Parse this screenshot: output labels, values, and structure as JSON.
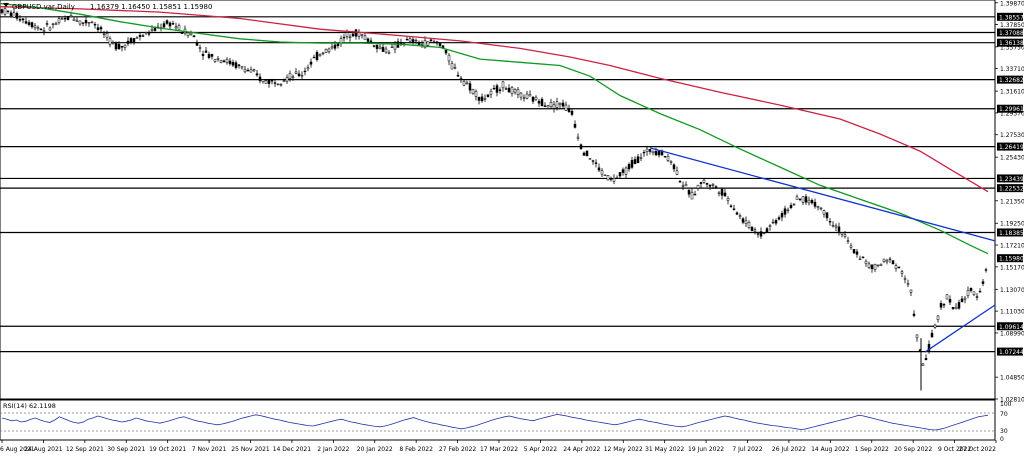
{
  "header": {
    "symbol": "GBPUSD.var,Daily",
    "ohlc": "1.16379 1.16450 1.15851 1.15980"
  },
  "rsi": {
    "label": "RSI(14) 62.1198",
    "levels": [
      "100",
      "70",
      "30",
      "0"
    ],
    "values": [
      55,
      52,
      48,
      50,
      45,
      47,
      52,
      55,
      50,
      46,
      44,
      50,
      58,
      53,
      48,
      44,
      42,
      45,
      52,
      55,
      60,
      57,
      53,
      50,
      48,
      45,
      47,
      50,
      55,
      52,
      48,
      46,
      44,
      42,
      45,
      48,
      52,
      56,
      58,
      54,
      50,
      47,
      45,
      42,
      40,
      38,
      40,
      43,
      46,
      50,
      54,
      57,
      60,
      63,
      61,
      58,
      55,
      52,
      50,
      47,
      44,
      42,
      40,
      38,
      36,
      35,
      38,
      41,
      44,
      47,
      50,
      52,
      48,
      45,
      43,
      40,
      38,
      36,
      34,
      33,
      35,
      38,
      42,
      46,
      50,
      53,
      56,
      52,
      48,
      45,
      42,
      40,
      37,
      35,
      32,
      30,
      28,
      30,
      33,
      36,
      40,
      44,
      48,
      52,
      55,
      58,
      60,
      57,
      54,
      52,
      50,
      48,
      52,
      55,
      58,
      61,
      64,
      62,
      60,
      57,
      55,
      53,
      50,
      48,
      46,
      44,
      42,
      40,
      38,
      40,
      43,
      46,
      49,
      52,
      50,
      47,
      45,
      43,
      40,
      38,
      36,
      34,
      33,
      35,
      38,
      42,
      45,
      48,
      51,
      54,
      57,
      60,
      58,
      55,
      52,
      50,
      47,
      44,
      42,
      40,
      38,
      36,
      35,
      33,
      31,
      30,
      28,
      26,
      28,
      31,
      34,
      37,
      40,
      43,
      46,
      49,
      52,
      55,
      58,
      62,
      60,
      57,
      54,
      51,
      48,
      45,
      42,
      40,
      38,
      36,
      34,
      32,
      30,
      28,
      26,
      25,
      27,
      30,
      34,
      38,
      42,
      46,
      50,
      54,
      58,
      60,
      62
    ]
  },
  "chart_data": {
    "type": "line",
    "title": "GBPUSD.var,Daily",
    "x_tick_labels": [
      "6 Aug 2021",
      "24 Aug 2021",
      "12 Sep 2021",
      "30 Sep 2021",
      "19 Oct 2021",
      "7 Nov 2021",
      "25 Nov 2021",
      "14 Dec 2021",
      "2 Jan 2022",
      "20 Jan 2022",
      "8 Feb 2022",
      "27 Feb 2022",
      "17 Mar 2022",
      "5 Apr 2022",
      "24 Apr 2022",
      "12 May 2022",
      "31 May 2022",
      "19 Jun 2022",
      "7 Jul 2022",
      "26 Jul 2022",
      "14 Aug 2022",
      "1 Sep 2022",
      "20 Sep 2022",
      "9 Oct 2022",
      "27 Oct 2022"
    ],
    "y_tick_labels": [
      1.3987,
      1.3785,
      1.3575,
      1.3371,
      1.3161,
      1.2957,
      1.2753,
      1.2543,
      1.2135,
      1.1925,
      1.1721,
      1.1517,
      1.1307,
      1.1103,
      1.0899,
      1.0485,
      1.0281
    ],
    "ylim": [
      1.0281,
      1.4013
    ],
    "horizontal_levels": [
      1.38557,
      1.37088,
      1.36138,
      1.32682,
      1.29961,
      1.26419,
      1.23439,
      1.22532,
      1.18385,
      1.09614,
      1.07244
    ],
    "current_price": 1.1598,
    "series": [
      {
        "type": "line",
        "color": "#cc2244",
        "values": [
          [
            0,
            1.395
          ],
          [
            80,
            1.393
          ],
          [
            160,
            1.39
          ],
          [
            240,
            1.384
          ],
          [
            320,
            1.374
          ],
          [
            400,
            1.368
          ],
          [
            460,
            1.363
          ],
          [
            520,
            1.356
          ],
          [
            570,
            1.348
          ],
          [
            610,
            1.34
          ],
          [
            660,
            1.328
          ],
          [
            720,
            1.315
          ],
          [
            780,
            1.303
          ],
          [
            840,
            1.29
          ],
          [
            880,
            1.276
          ],
          [
            920,
            1.26
          ],
          [
            950,
            1.243
          ],
          [
            988,
            1.222
          ]
        ]
      },
      {
        "type": "line",
        "color": "#119922",
        "values": [
          [
            0,
            1.398
          ],
          [
            40,
            1.394
          ],
          [
            80,
            1.388
          ],
          [
            120,
            1.381
          ],
          [
            160,
            1.375
          ],
          [
            200,
            1.37
          ],
          [
            240,
            1.365
          ],
          [
            280,
            1.362
          ],
          [
            320,
            1.361
          ],
          [
            360,
            1.361
          ],
          [
            400,
            1.36
          ],
          [
            440,
            1.357
          ],
          [
            480,
            1.346
          ],
          [
            520,
            1.343
          ],
          [
            560,
            1.34
          ],
          [
            590,
            1.33
          ],
          [
            620,
            1.312
          ],
          [
            660,
            1.295
          ],
          [
            700,
            1.28
          ],
          [
            740,
            1.262
          ],
          [
            780,
            1.245
          ],
          [
            820,
            1.228
          ],
          [
            860,
            1.215
          ],
          [
            900,
            1.202
          ],
          [
            940,
            1.186
          ],
          [
            970,
            1.172
          ],
          [
            988,
            1.164
          ]
        ]
      },
      {
        "type": "line",
        "color": "#1133cc",
        "values": [
          [
            650,
            1.263
          ],
          [
            995,
            1.176
          ]
        ]
      },
      {
        "type": "line",
        "color": "#1133cc",
        "values": [
          [
            925,
            1.072
          ],
          [
            995,
            1.116
          ]
        ]
      }
    ],
    "price_path": [
      [
        2,
        1.392
      ],
      [
        12,
        1.388
      ],
      [
        22,
        1.384
      ],
      [
        32,
        1.379
      ],
      [
        42,
        1.374
      ],
      [
        52,
        1.377
      ],
      [
        62,
        1.382
      ],
      [
        72,
        1.386
      ],
      [
        82,
        1.38
      ],
      [
        92,
        1.382
      ],
      [
        102,
        1.372
      ],
      [
        112,
        1.36
      ],
      [
        122,
        1.358
      ],
      [
        132,
        1.364
      ],
      [
        142,
        1.368
      ],
      [
        152,
        1.372
      ],
      [
        162,
        1.377
      ],
      [
        172,
        1.38
      ],
      [
        182,
        1.372
      ],
      [
        192,
        1.37
      ],
      [
        202,
        1.354
      ],
      [
        212,
        1.348
      ],
      [
        222,
        1.346
      ],
      [
        232,
        1.342
      ],
      [
        242,
        1.338
      ],
      [
        252,
        1.334
      ],
      [
        262,
        1.326
      ],
      [
        272,
        1.325
      ],
      [
        282,
        1.327
      ],
      [
        292,
        1.33
      ],
      [
        302,
        1.332
      ],
      [
        312,
        1.344
      ],
      [
        322,
        1.353
      ],
      [
        332,
        1.356
      ],
      [
        342,
        1.364
      ],
      [
        352,
        1.372
      ],
      [
        362,
        1.368
      ],
      [
        372,
        1.362
      ],
      [
        382,
        1.355
      ],
      [
        392,
        1.355
      ],
      [
        402,
        1.362
      ],
      [
        412,
        1.363
      ],
      [
        422,
        1.36
      ],
      [
        432,
        1.362
      ],
      [
        442,
        1.36
      ],
      [
        452,
        1.34
      ],
      [
        462,
        1.328
      ],
      [
        472,
        1.318
      ],
      [
        482,
        1.308
      ],
      [
        492,
        1.314
      ],
      [
        502,
        1.322
      ],
      [
        512,
        1.316
      ],
      [
        522,
        1.312
      ],
      [
        532,
        1.309
      ],
      [
        542,
        1.306
      ],
      [
        552,
        1.303
      ],
      [
        562,
        1.305
      ],
      [
        572,
        1.295
      ],
      [
        582,
        1.262
      ],
      [
        592,
        1.252
      ],
      [
        602,
        1.24
      ],
      [
        612,
        1.232
      ],
      [
        622,
        1.238
      ],
      [
        632,
        1.248
      ],
      [
        642,
        1.256
      ],
      [
        652,
        1.262
      ],
      [
        662,
        1.258
      ],
      [
        672,
        1.25
      ],
      [
        682,
        1.23
      ],
      [
        692,
        1.218
      ],
      [
        702,
        1.232
      ],
      [
        712,
        1.228
      ],
      [
        722,
        1.222
      ],
      [
        732,
        1.21
      ],
      [
        742,
        1.196
      ],
      [
        752,
        1.188
      ],
      [
        762,
        1.182
      ],
      [
        772,
        1.192
      ],
      [
        782,
        1.2
      ],
      [
        792,
        1.21
      ],
      [
        802,
        1.216
      ],
      [
        812,
        1.212
      ],
      [
        822,
        1.206
      ],
      [
        832,
        1.194
      ],
      [
        842,
        1.184
      ],
      [
        852,
        1.168
      ],
      [
        862,
        1.16
      ],
      [
        872,
        1.15
      ],
      [
        882,
        1.155
      ],
      [
        892,
        1.158
      ],
      [
        902,
        1.148
      ],
      [
        912,
        1.125
      ],
      [
        918,
        1.078
      ],
      [
        924,
        1.058
      ],
      [
        930,
        1.08
      ],
      [
        936,
        1.098
      ],
      [
        942,
        1.118
      ],
      [
        948,
        1.124
      ],
      [
        955,
        1.11
      ],
      [
        962,
        1.12
      ],
      [
        970,
        1.128
      ],
      [
        978,
        1.126
      ],
      [
        984,
        1.14
      ],
      [
        988,
        1.16
      ]
    ]
  }
}
